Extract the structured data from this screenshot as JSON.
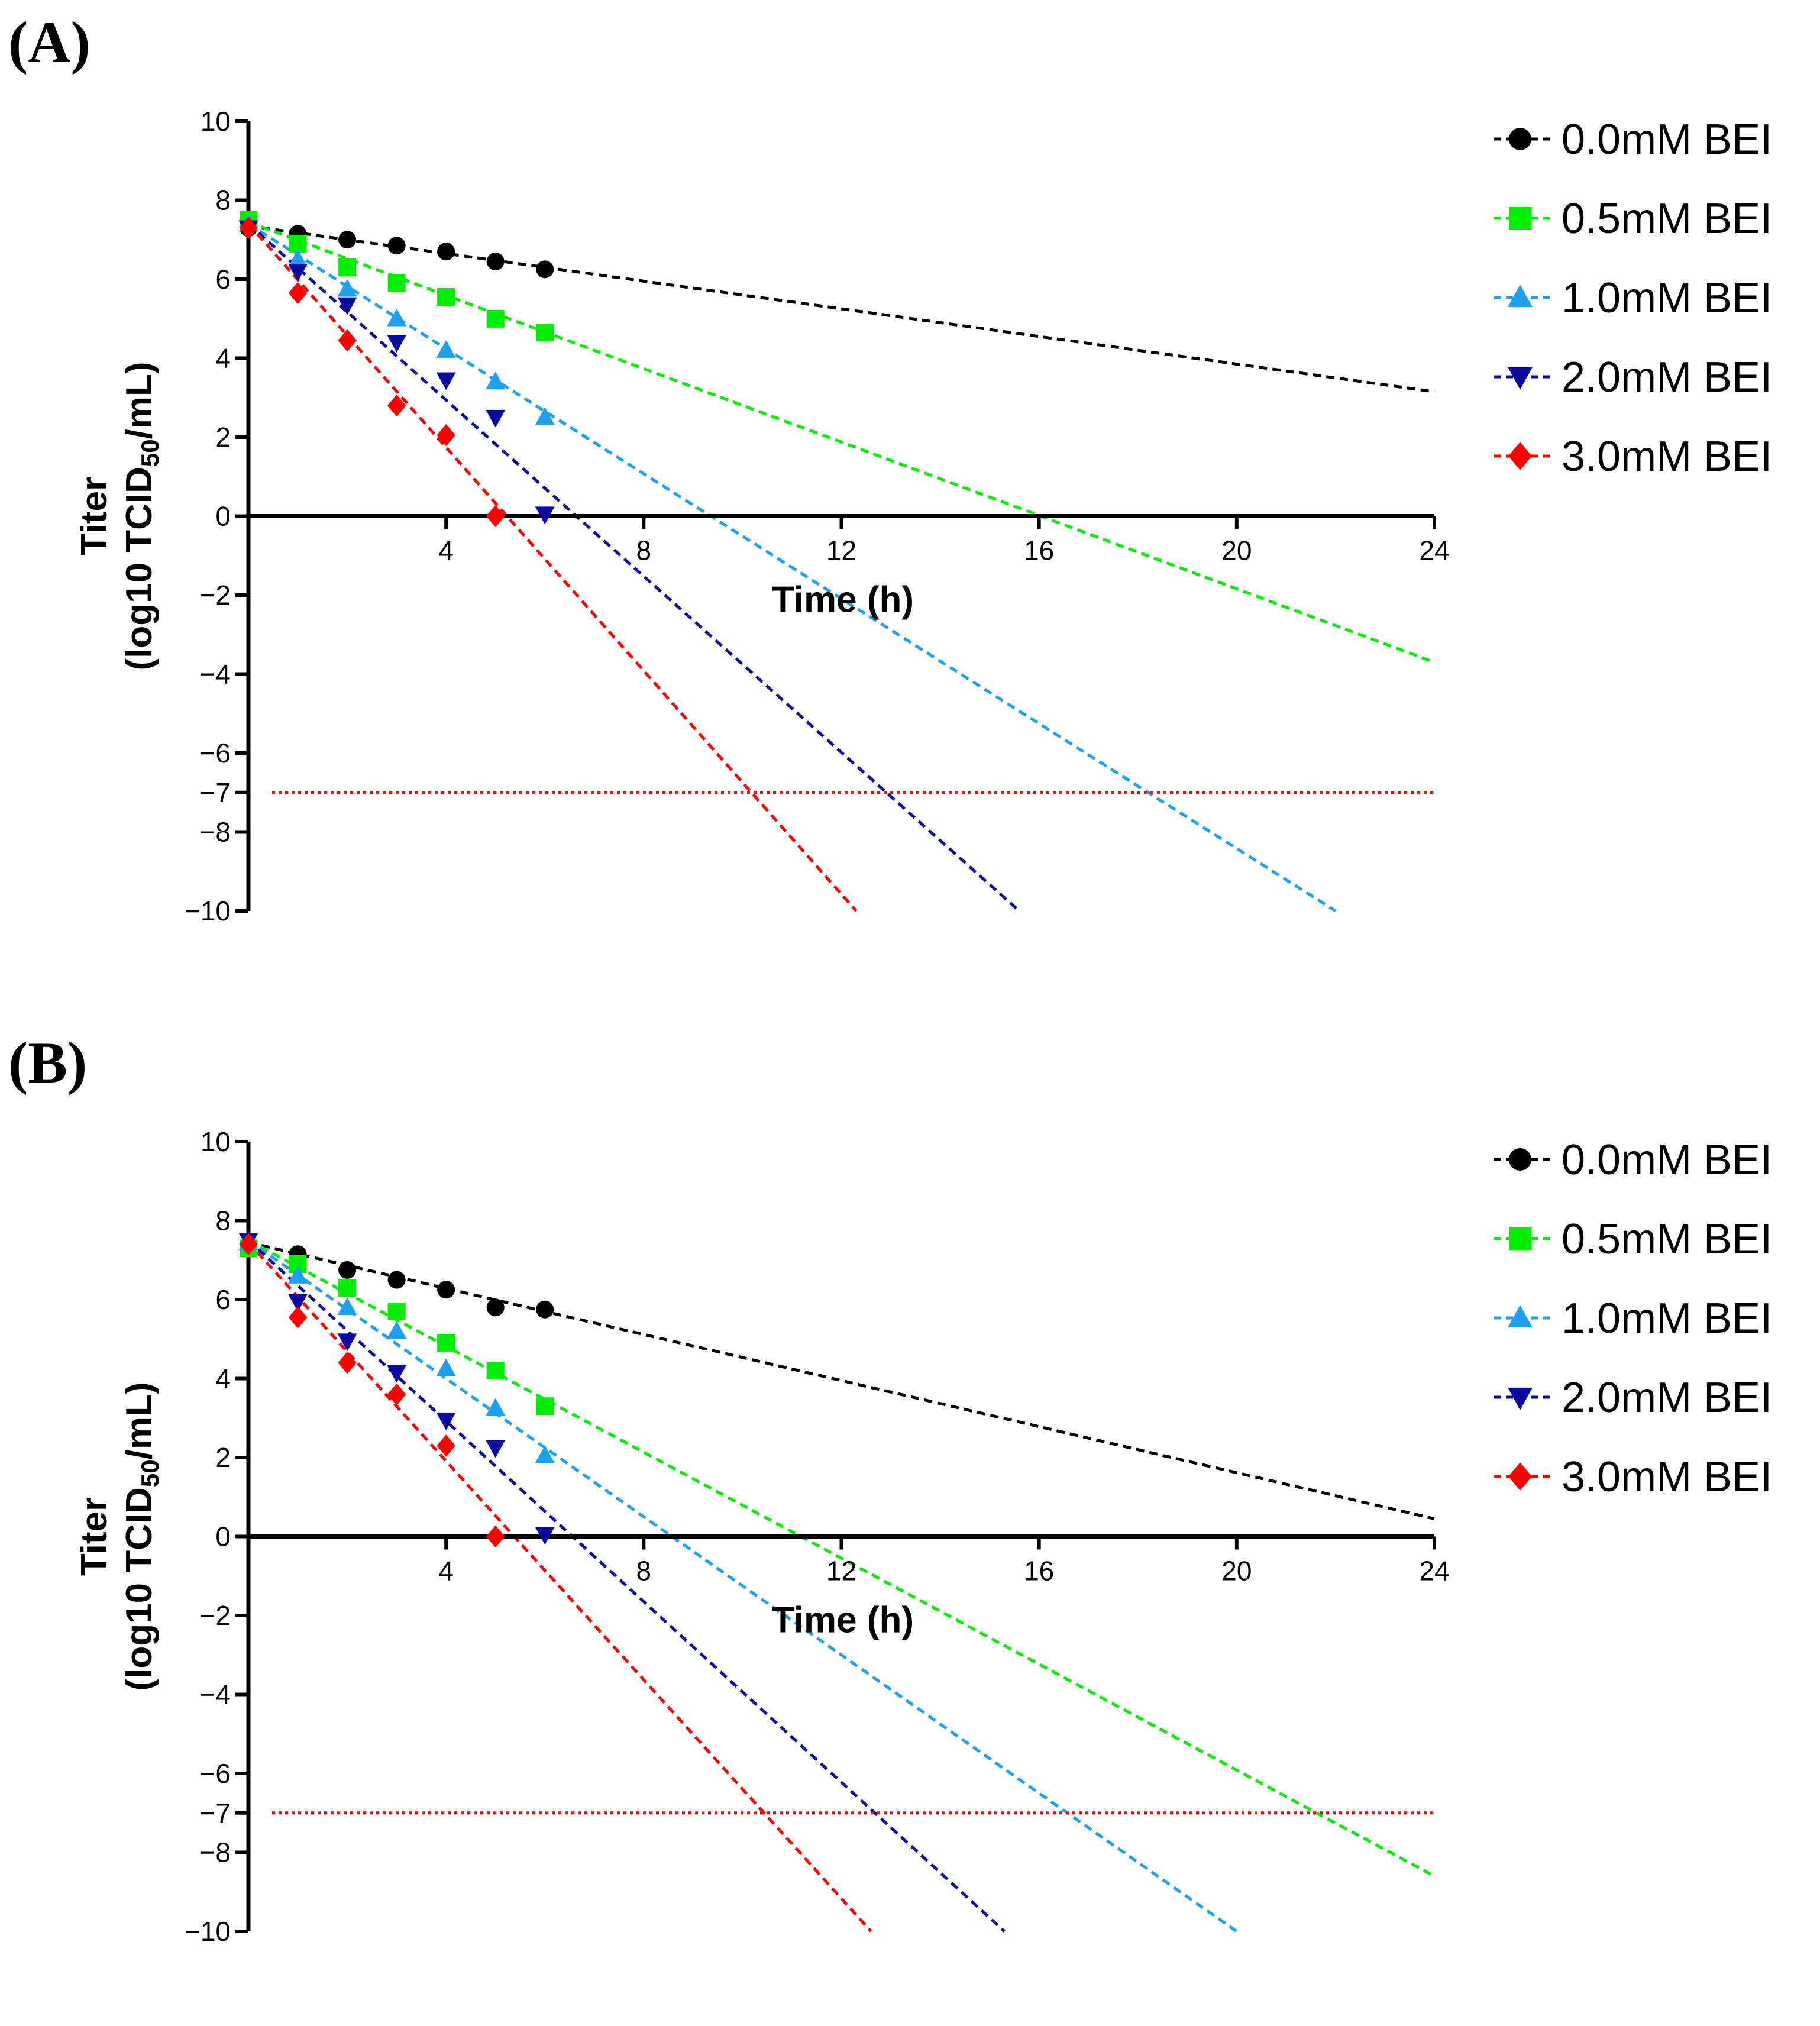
{
  "chart_data": [
    {
      "panel_label": "(A)",
      "type": "line",
      "xlabel": "Time (h)",
      "ylabel_line1": "Titer",
      "ylabel_line2_prefix": "(log10 TCID",
      "ylabel_line2_sub": "50",
      "ylabel_line2_suffix": "/mL)",
      "xlim": [
        0,
        24
      ],
      "ylim": [
        -10,
        10
      ],
      "xticks": [
        4,
        8,
        12,
        16,
        20,
        24
      ],
      "yticks": [
        10,
        8,
        6,
        4,
        2,
        0,
        -2,
        -4,
        -6,
        -7,
        -8,
        -10
      ],
      "ytick_labels": [
        "10",
        "8",
        "6",
        "4",
        "2",
        "0",
        "−2",
        "−4",
        "−6",
        "−7",
        "−8",
        "−10"
      ],
      "detection_limit": -7,
      "legend_position": "right",
      "series": [
        {
          "name": "0.0mM BEI",
          "color": "#000000",
          "marker": "circle",
          "x": [
            0,
            1,
            2,
            3,
            4,
            5,
            6
          ],
          "y": [
            7.3,
            7.15,
            7.0,
            6.85,
            6.7,
            6.45,
            6.25
          ],
          "fit": [
            [
              0,
              7.35
            ],
            [
              24,
              3.15
            ]
          ]
        },
        {
          "name": "0.5mM BEI",
          "color": "#00ee00",
          "marker": "square",
          "x": [
            0,
            1,
            2,
            3,
            4,
            5,
            6
          ],
          "y": [
            7.5,
            6.9,
            6.3,
            5.9,
            5.55,
            5.0,
            4.65
          ],
          "fit": [
            [
              0,
              7.45
            ],
            [
              24,
              -3.7
            ]
          ]
        },
        {
          "name": "1.0mM BEI",
          "color": "#1ba1f0",
          "marker": "triangle-up",
          "x": [
            0,
            1,
            2,
            3,
            4,
            5,
            6
          ],
          "y": [
            7.4,
            6.5,
            5.75,
            5.0,
            4.2,
            3.4,
            2.5
          ],
          "fit": [
            [
              0,
              7.4
            ],
            [
              22,
              -10
            ]
          ]
        },
        {
          "name": "2.0mM BEI",
          "color": "#0a0aa0",
          "marker": "triangle-down",
          "x": [
            0,
            1,
            2,
            3,
            4,
            5,
            6
          ],
          "y": [
            7.3,
            6.2,
            5.35,
            4.4,
            3.45,
            2.5,
            0.05
          ],
          "fit": [
            [
              0,
              7.4
            ],
            [
              15.6,
              -10
            ]
          ]
        },
        {
          "name": "3.0mM BEI",
          "color": "#ff0000",
          "marker": "diamond",
          "x": [
            0,
            1,
            2,
            3,
            4,
            5
          ],
          "y": [
            7.3,
            5.65,
            4.45,
            2.8,
            2.05,
            0.0
          ],
          "fit": [
            [
              0,
              7.4
            ],
            [
              12.3,
              -10
            ]
          ]
        }
      ]
    },
    {
      "panel_label": "(B)",
      "type": "line",
      "xlabel": "Time (h)",
      "ylabel_line1": "Titer",
      "ylabel_line2_prefix": "(log10 TCID",
      "ylabel_line2_sub": "50",
      "ylabel_line2_suffix": "/mL)",
      "xlim": [
        0,
        24
      ],
      "ylim": [
        -10,
        10
      ],
      "xticks": [
        4,
        8,
        12,
        16,
        20,
        24
      ],
      "yticks": [
        10,
        8,
        6,
        4,
        2,
        0,
        -2,
        -4,
        -6,
        -7,
        -8,
        -10
      ],
      "ytick_labels": [
        "10",
        "8",
        "6",
        "4",
        "2",
        "0",
        "−2",
        "−4",
        "−6",
        "−7",
        "−8",
        "−10"
      ],
      "detection_limit": -7,
      "legend_position": "right",
      "series": [
        {
          "name": "0.0mM BEI",
          "color": "#000000",
          "marker": "circle",
          "x": [
            0,
            1,
            2,
            3,
            4,
            5,
            6
          ],
          "y": [
            7.3,
            7.15,
            6.75,
            6.5,
            6.25,
            5.8,
            5.75
          ],
          "fit": [
            [
              0,
              7.45
            ],
            [
              24,
              0.45
            ]
          ]
        },
        {
          "name": "0.5mM BEI",
          "color": "#00ee00",
          "marker": "square",
          "x": [
            0,
            1,
            2,
            3,
            4,
            5,
            6
          ],
          "y": [
            7.3,
            6.9,
            6.3,
            5.7,
            4.9,
            4.2,
            3.3
          ],
          "fit": [
            [
              0,
              7.5
            ],
            [
              24,
              -8.6
            ]
          ]
        },
        {
          "name": "1.0mM BEI",
          "color": "#1ba1f0",
          "marker": "triangle-up",
          "x": [
            0,
            1,
            2,
            3,
            4,
            5,
            6
          ],
          "y": [
            7.45,
            6.6,
            5.8,
            5.2,
            4.25,
            3.25,
            2.05
          ],
          "fit": [
            [
              0,
              7.5
            ],
            [
              20,
              -10
            ]
          ]
        },
        {
          "name": "2.0mM BEI",
          "color": "#0a0aa0",
          "marker": "triangle-down",
          "x": [
            0,
            1,
            2,
            3,
            4,
            5,
            6
          ],
          "y": [
            7.5,
            5.95,
            4.95,
            4.15,
            2.95,
            2.25,
            0.05
          ],
          "fit": [
            [
              0,
              7.5
            ],
            [
              15.3,
              -10
            ]
          ]
        },
        {
          "name": "3.0mM BEI",
          "color": "#ff0000",
          "marker": "diamond",
          "x": [
            0,
            1,
            2,
            3,
            4,
            5
          ],
          "y": [
            7.4,
            5.55,
            4.4,
            3.6,
            2.3,
            0.0
          ],
          "fit": [
            [
              0,
              7.45
            ],
            [
              12.6,
              -10
            ]
          ]
        }
      ]
    }
  ]
}
